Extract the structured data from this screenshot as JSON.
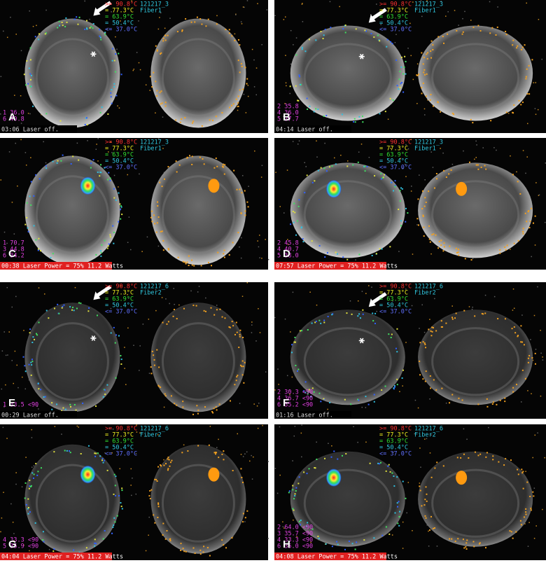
{
  "legend": [
    ">= 90.8°C",
    "= 77.3°C",
    "= 63.9°C",
    "= 50.4°C",
    "<= 37.0°C"
  ],
  "panels": [
    {
      "label": "A",
      "id": "121217_3",
      "fiber": "Fiber1",
      "readouts": [
        "1  36.0",
        "6  40.8"
      ],
      "status": "03:06 Laser off."
    },
    {
      "label": "B",
      "id": "121217_3",
      "fiber": "Fiber1",
      "readouts": [
        "2  35.8",
        "4  36.0",
        "5  37.7"
      ],
      "status": "04:14 Laser off."
    },
    {
      "label": "C",
      "id": "121217_3",
      "fiber": "Fiber1",
      "readouts": [
        "1  70.7",
        "3  44.8",
        "6  34.2"
      ],
      "status": "00:38 Laser Power = 75%  11.2 Watts"
    },
    {
      "label": "D",
      "id": "121217_3",
      "fiber": "Fiber1",
      "readouts": [
        "2  45.8",
        "4  40.7",
        "5  38.0"
      ],
      "status": "07:57 Laser Power = 75%  11.2 Watts"
    },
    {
      "label": "E",
      "id": "121217_6",
      "fiber": "Fiber2",
      "readouts": [
        "1  33.5 <90"
      ],
      "status": "00:29 Laser off."
    },
    {
      "label": "F",
      "id": "121217_6",
      "fiber": "Fiber2",
      "readouts": [
        "2  30.3 <90",
        "4  36.7 <90",
        "6  35.2 <90"
      ],
      "status": "01:16 Laser off."
    },
    {
      "label": "G",
      "id": "121217_6",
      "fiber": "Fiber2",
      "readouts": [
        "4  33.3 <90",
        "5  35.9 <90"
      ],
      "status": "04:04 Laser Power = 75%  11.2 Watts"
    },
    {
      "label": "H",
      "id": "121217_6",
      "fiber": "Fiber2",
      "readouts": [
        "2  64.0 <90",
        "3  35.7 <90",
        "4  33.3 <90",
        "6  35.0 <90"
      ],
      "status": "04:08 Laser Power = 75%  11.2 Watts"
    }
  ]
}
